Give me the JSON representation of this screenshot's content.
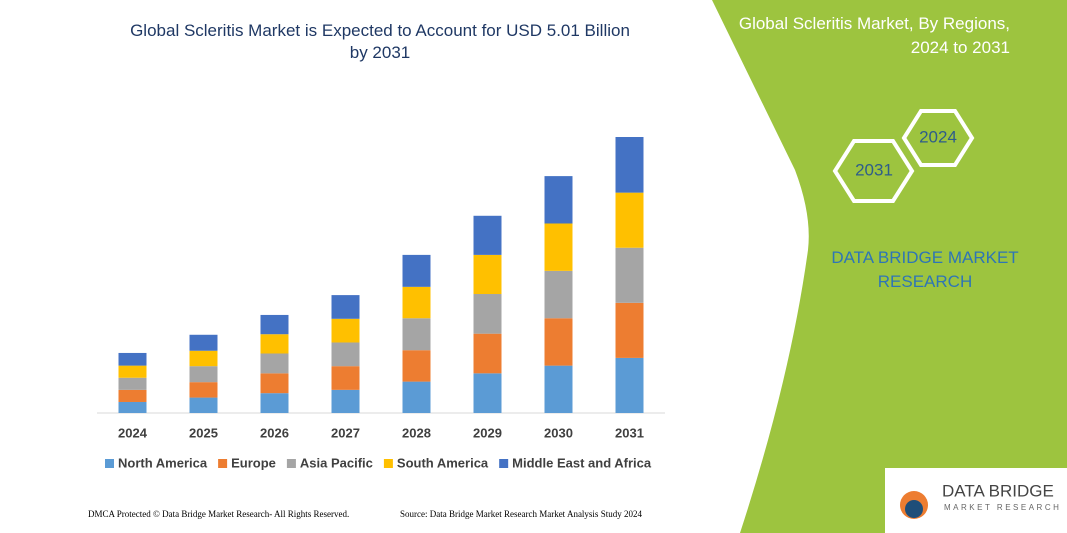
{
  "chart_data": {
    "type": "stacked-bar",
    "title": "Global Scleritis Market is Expected to Account for USD 5.01 Billion by 2031",
    "categories": [
      "2024",
      "2025",
      "2026",
      "2027",
      "2028",
      "2029",
      "2030",
      "2031"
    ],
    "series": [
      {
        "name": "North America",
        "color": "#5b9bd5",
        "values": [
          0.2,
          0.28,
          0.36,
          0.42,
          0.57,
          0.72,
          0.86,
          1.0
        ]
      },
      {
        "name": "Europe",
        "color": "#ed7d31",
        "values": [
          0.22,
          0.28,
          0.36,
          0.43,
          0.57,
          0.72,
          0.86,
          1.0
        ]
      },
      {
        "name": "Asia Pacific",
        "color": "#a5a5a5",
        "values": [
          0.22,
          0.29,
          0.36,
          0.43,
          0.58,
          0.72,
          0.86,
          1.0
        ]
      },
      {
        "name": "South America",
        "color": "#ffc000",
        "values": [
          0.22,
          0.28,
          0.35,
          0.43,
          0.57,
          0.71,
          0.86,
          1.0
        ]
      },
      {
        "name": "Middle East and Africa",
        "color": "#4472c4",
        "values": [
          0.23,
          0.29,
          0.35,
          0.43,
          0.58,
          0.71,
          0.86,
          1.01
        ]
      }
    ]
  },
  "panel": {
    "title": "Global Scleritis Market, By Regions, 2024 to 2031",
    "hex_back": "2024",
    "hex_front": "2031",
    "brand": "DATA BRIDGE MARKET RESEARCH"
  },
  "logo": {
    "name": "DATA BRIDGE",
    "tagline": "MARKET RESEARCH"
  },
  "footer": {
    "left": "DMCA Protected © Data Bridge Market Research- All Rights Reserved.",
    "right": "Source: Data Bridge Market Research Market Analysis Study 2024"
  }
}
